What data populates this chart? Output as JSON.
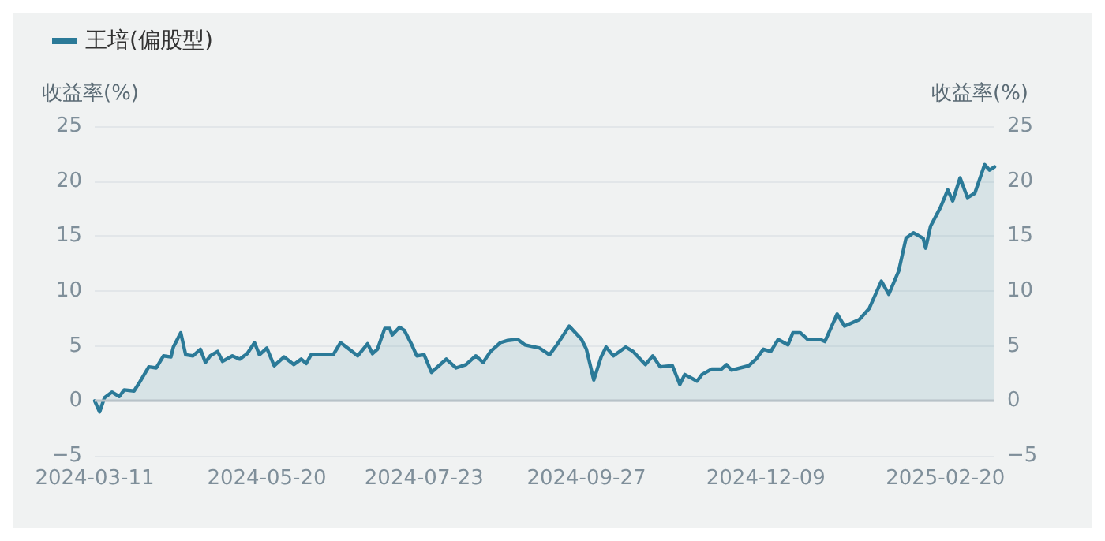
{
  "chart_data": {
    "type": "area",
    "ylabel": "收益率(%)",
    "y2label": "收益率(%)",
    "xlim": [
      "2024-03-11",
      "2025-03-12"
    ],
    "xticks": [
      "2024-03-11",
      "2024-05-20",
      "2024-07-23",
      "2024-09-27",
      "2024-12-09",
      "2025-02-20"
    ],
    "ylim": [
      -5,
      25
    ],
    "yticks": [
      {
        "value": -5,
        "label": "−5"
      },
      0,
      5,
      10,
      15,
      20,
      25
    ],
    "y2lim": [
      -5,
      25
    ],
    "y2ticks": [
      {
        "value": -5,
        "label": "−5"
      },
      0,
      5,
      10,
      15,
      20,
      25
    ],
    "grid": "y",
    "legend": "top left",
    "marker": "none",
    "line_style": "solid",
    "x": [
      "2024-03-11",
      "2024-03-13",
      "2024-03-15",
      "2024-03-18",
      "2024-03-21",
      "2024-03-23",
      "2024-03-27",
      "2024-03-29",
      "2024-04-02",
      "2024-04-05",
      "2024-04-08",
      "2024-04-11",
      "2024-04-12",
      "2024-04-15",
      "2024-04-17",
      "2024-04-20",
      "2024-04-23",
      "2024-04-25",
      "2024-04-27",
      "2024-04-30",
      "2024-05-02",
      "2024-05-06",
      "2024-05-09",
      "2024-05-12",
      "2024-05-15",
      "2024-05-17",
      "2024-05-20",
      "2024-05-23",
      "2024-05-27",
      "2024-05-31",
      "2024-06-03",
      "2024-06-05",
      "2024-06-07",
      "2024-06-10",
      "2024-06-16",
      "2024-06-19",
      "2024-06-22",
      "2024-06-26",
      "2024-06-30",
      "2024-07-02",
      "2024-07-04",
      "2024-07-07",
      "2024-07-09",
      "2024-07-10",
      "2024-07-13",
      "2024-07-15",
      "2024-07-18",
      "2024-07-20",
      "2024-07-23",
      "2024-07-26",
      "2024-07-29",
      "2024-08-01",
      "2024-08-05",
      "2024-08-09",
      "2024-08-13",
      "2024-08-16",
      "2024-08-19",
      "2024-08-23",
      "2024-08-26",
      "2024-08-30",
      "2024-09-02",
      "2024-09-08",
      "2024-09-12",
      "2024-09-15",
      "2024-09-20",
      "2024-09-25",
      "2024-09-27",
      "2024-09-30",
      "2024-10-03",
      "2024-10-05",
      "2024-10-08",
      "2024-10-13",
      "2024-10-16",
      "2024-10-21",
      "2024-10-24",
      "2024-10-27",
      "2024-11-01",
      "2024-11-04",
      "2024-11-06",
      "2024-11-11",
      "2024-11-13",
      "2024-11-17",
      "2024-11-21",
      "2024-11-23",
      "2024-11-25",
      "2024-12-02",
      "2024-12-05",
      "2024-12-08",
      "2024-12-11",
      "2024-12-14",
      "2024-12-18",
      "2024-12-20",
      "2024-12-23",
      "2024-12-26",
      "2024-12-31",
      "2025-01-02",
      "2025-01-07",
      "2025-01-10",
      "2025-01-16",
      "2025-01-20",
      "2025-01-25",
      "2025-01-28",
      "2025-02-01",
      "2025-02-04",
      "2025-02-07",
      "2025-02-11",
      "2025-02-12",
      "2025-02-14",
      "2025-02-18",
      "2025-02-21",
      "2025-02-23",
      "2025-02-26",
      "2025-03-01",
      "2025-03-04",
      "2025-03-08",
      "2025-03-10",
      "2025-03-12"
    ],
    "series": [
      {
        "name": "王培(偏股型)",
        "color": "#2b7a98",
        "values": [
          0,
          -1.0,
          0.3,
          0.8,
          0.4,
          1.0,
          0.9,
          1.6,
          3.1,
          3.0,
          4.1,
          4.0,
          4.9,
          6.2,
          4.2,
          4.1,
          4.7,
          3.5,
          4.1,
          4.5,
          3.6,
          4.1,
          3.8,
          4.3,
          5.3,
          4.2,
          4.8,
          3.2,
          4.0,
          3.3,
          3.8,
          3.4,
          4.2,
          4.2,
          4.2,
          5.3,
          4.8,
          4.1,
          5.2,
          4.3,
          4.7,
          6.6,
          6.6,
          6.0,
          6.7,
          6.4,
          5.1,
          4.1,
          4.2,
          2.6,
          3.2,
          3.8,
          3.0,
          3.3,
          4.1,
          3.5,
          4.5,
          5.3,
          5.5,
          5.6,
          5.1,
          4.8,
          4.2,
          5.1,
          6.8,
          5.6,
          4.7,
          1.9,
          4.0,
          4.9,
          4.1,
          4.9,
          4.5,
          3.3,
          4.1,
          3.1,
          3.2,
          1.5,
          2.4,
          1.8,
          2.4,
          2.9,
          2.9,
          3.3,
          2.8,
          3.2,
          3.8,
          4.7,
          4.5,
          5.6,
          5.1,
          6.2,
          6.2,
          5.6,
          5.6,
          5.4,
          7.9,
          6.8,
          7.4,
          8.4,
          10.9,
          9.7,
          11.8,
          14.8,
          15.3,
          14.8,
          13.9,
          15.9,
          17.6,
          19.2,
          18.2,
          20.3,
          18.5,
          18.9,
          21.5,
          21.0,
          21.3
        ]
      }
    ]
  }
}
